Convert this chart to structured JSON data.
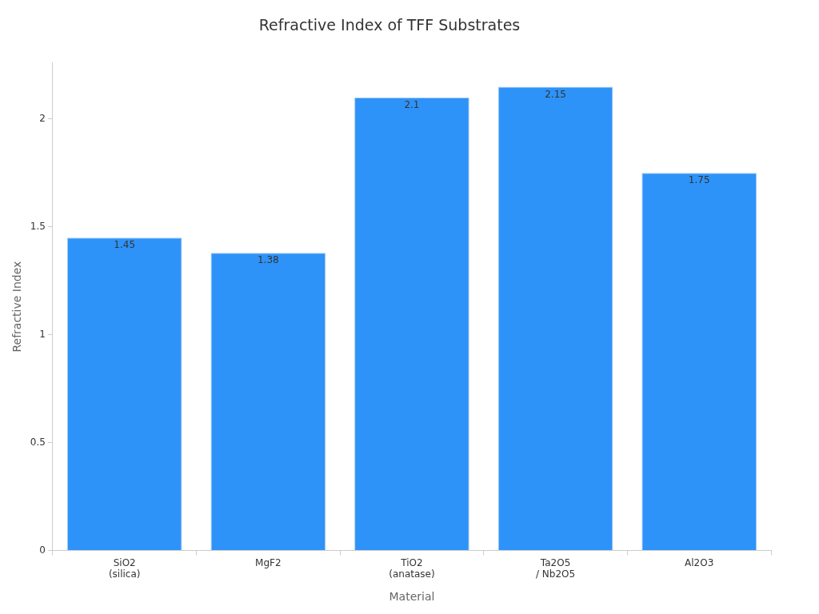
{
  "chart_data": {
    "type": "bar",
    "title": "Refractive Index of TFF Substrates",
    "xlabel": "Material",
    "ylabel": "Refractive Index",
    "categories": [
      "SiO2\n(silica)",
      "MgF2",
      "TiO2\n(anatase)",
      "Ta2O5\n/ Nb2O5",
      "Al2O3"
    ],
    "values": [
      1.45,
      1.38,
      2.1,
      2.15,
      1.75
    ],
    "color": "#2e93f9",
    "ylim": [
      0,
      2.26
    ],
    "yticks": [
      0,
      0.5,
      1,
      1.5,
      2
    ],
    "grid": false,
    "legend": false,
    "data_labels": true
  }
}
